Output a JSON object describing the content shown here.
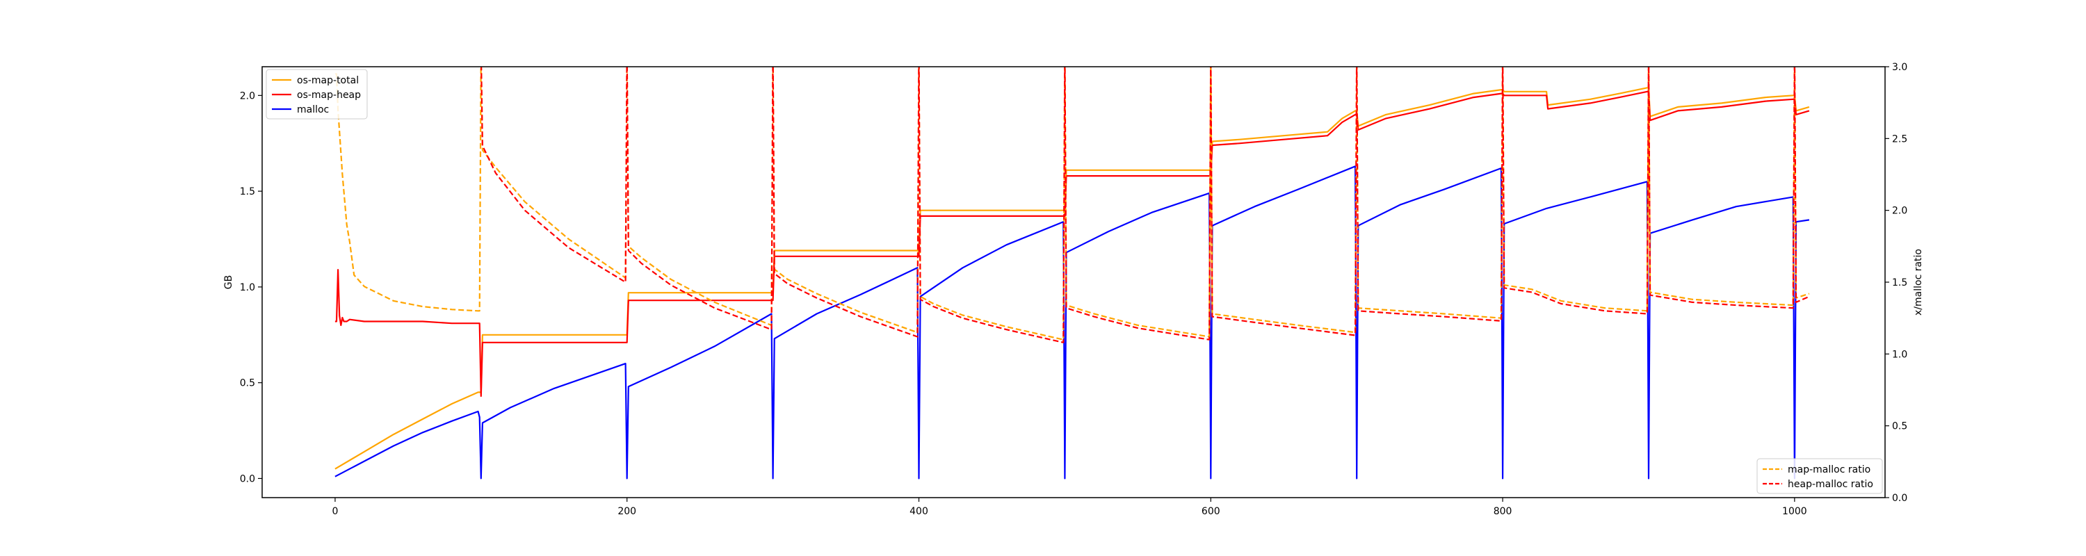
{
  "chart_data": {
    "type": "line",
    "title": "",
    "xlabel": "",
    "ylabel_left": "GB",
    "ylabel_right": "x/malloc ratio",
    "xlim": [
      -50,
      1062
    ],
    "ylim_left": [
      -0.1,
      2.15
    ],
    "ylim_right": [
      0,
      3.0
    ],
    "xticks": [
      0,
      200,
      400,
      600,
      800,
      1000
    ],
    "xtick_labels": [
      "0",
      "200",
      "400",
      "600",
      "800",
      "1000"
    ],
    "yticks_left": [
      0.0,
      0.5,
      1.0,
      1.5,
      2.0
    ],
    "ytick_labels_left": [
      "0.0",
      "0.5",
      "1.0",
      "1.5",
      "2.0"
    ],
    "yticks_right": [
      0.0,
      0.5,
      1.0,
      1.5,
      2.0,
      2.5,
      3.0
    ],
    "ytick_labels_right": [
      "0.0",
      "0.5",
      "1.0",
      "1.5",
      "2.0",
      "2.5",
      "3.0"
    ],
    "grid": false,
    "legend_left": {
      "placement": "top-left",
      "entries": [
        "os-map-total",
        "os-map-heap",
        "malloc"
      ]
    },
    "legend_right": {
      "placement": "bottom-right",
      "entries": [
        "map-malloc ratio",
        "heap-malloc ratio"
      ]
    },
    "colors": {
      "os_map_total": "#ffa500",
      "os_map_heap": "#ff0000",
      "malloc": "#0000ff"
    },
    "series": [
      {
        "name": "os-map-total",
        "axis": "left",
        "style": "solid",
        "color": "#ffa500",
        "x": [
          0,
          20,
          40,
          60,
          80,
          98,
          100,
          101,
          199,
          200,
          201,
          299,
          300,
          301,
          399,
          400,
          401,
          499,
          500,
          501,
          599,
          600,
          601,
          620,
          650,
          680,
          690,
          699,
          700,
          701,
          720,
          750,
          780,
          799,
          800,
          801,
          830,
          831,
          860,
          880,
          899,
          900,
          901,
          920,
          950,
          980,
          999,
          1000,
          1001,
          1010
        ],
        "y": [
          0.05,
          0.14,
          0.23,
          0.31,
          0.39,
          0.45,
          0.45,
          0.75,
          0.75,
          0.75,
          0.97,
          0.97,
          0.97,
          1.19,
          1.19,
          1.19,
          1.4,
          1.4,
          1.4,
          1.61,
          1.61,
          1.61,
          1.76,
          1.77,
          1.79,
          1.81,
          1.88,
          1.92,
          1.92,
          1.84,
          1.9,
          1.95,
          2.01,
          2.03,
          2.03,
          2.02,
          2.02,
          1.95,
          1.98,
          2.01,
          2.04,
          2.04,
          1.89,
          1.94,
          1.96,
          1.99,
          2.0,
          2.0,
          1.92,
          1.94
        ]
      },
      {
        "name": "os-map-heap",
        "axis": "left",
        "style": "solid",
        "color": "#ff0000",
        "x": [
          0,
          1,
          2,
          3,
          4,
          5,
          6,
          8,
          10,
          20,
          40,
          60,
          80,
          98,
          99,
          100,
          101,
          199,
          200,
          201,
          299,
          300,
          301,
          399,
          400,
          401,
          499,
          500,
          501,
          599,
          600,
          601,
          620,
          650,
          680,
          690,
          699,
          700,
          701,
          720,
          750,
          780,
          799,
          800,
          801,
          830,
          831,
          860,
          880,
          899,
          900,
          901,
          920,
          950,
          980,
          999,
          1000,
          1001,
          1010
        ],
        "y": [
          0.82,
          0.82,
          1.09,
          0.85,
          0.8,
          0.84,
          0.82,
          0.82,
          0.83,
          0.82,
          0.82,
          0.82,
          0.81,
          0.81,
          0.81,
          0.43,
          0.71,
          0.71,
          0.71,
          0.93,
          0.93,
          0.93,
          1.16,
          1.16,
          1.16,
          1.37,
          1.37,
          1.37,
          1.58,
          1.58,
          1.58,
          1.74,
          1.75,
          1.77,
          1.79,
          1.86,
          1.9,
          1.9,
          1.82,
          1.88,
          1.93,
          1.99,
          2.01,
          2.01,
          2.0,
          2.0,
          1.93,
          1.96,
          1.99,
          2.02,
          2.02,
          1.87,
          1.92,
          1.94,
          1.97,
          1.98,
          1.98,
          1.9,
          1.92
        ]
      },
      {
        "name": "malloc",
        "axis": "left",
        "style": "solid",
        "color": "#0000ff",
        "x": [
          0,
          20,
          40,
          60,
          80,
          98,
          99,
          100,
          101,
          120,
          150,
          199,
          200,
          201,
          230,
          260,
          299,
          300,
          301,
          330,
          360,
          399,
          400,
          401,
          430,
          460,
          499,
          500,
          501,
          530,
          560,
          599,
          600,
          601,
          630,
          660,
          699,
          700,
          701,
          730,
          760,
          799,
          800,
          801,
          830,
          860,
          899,
          900,
          901,
          930,
          960,
          999,
          1000,
          1001,
          1010
        ],
        "y": [
          0.01,
          0.09,
          0.17,
          0.24,
          0.3,
          0.35,
          0.32,
          0.0,
          0.29,
          0.37,
          0.47,
          0.6,
          0.0,
          0.48,
          0.58,
          0.69,
          0.86,
          0.0,
          0.73,
          0.86,
          0.96,
          1.1,
          0.0,
          0.95,
          1.1,
          1.22,
          1.34,
          0.0,
          1.18,
          1.29,
          1.39,
          1.49,
          0.0,
          1.32,
          1.42,
          1.51,
          1.63,
          0.0,
          1.32,
          1.43,
          1.51,
          1.62,
          0.0,
          1.33,
          1.41,
          1.47,
          1.55,
          0.0,
          1.28,
          1.35,
          1.42,
          1.47,
          0.0,
          1.34,
          1.35
        ]
      },
      {
        "name": "map-malloc ratio",
        "axis": "right",
        "style": "dashed",
        "color": "#ffa500",
        "x": [
          0,
          1,
          2,
          5,
          8,
          10,
          13,
          20,
          40,
          60,
          80,
          98,
          99,
          100,
          101,
          110,
          130,
          160,
          199,
          200,
          201,
          210,
          230,
          260,
          299,
          300,
          301,
          310,
          330,
          360,
          399,
          400,
          401,
          410,
          430,
          460,
          499,
          500,
          501,
          520,
          550,
          599,
          600,
          601,
          630,
          660,
          699,
          700,
          701,
          730,
          760,
          799,
          800,
          801,
          820,
          840,
          870,
          899,
          900,
          901,
          930,
          960,
          999,
          1000,
          1001,
          1010
        ],
        "y": [
          2.95,
          2.95,
          2.7,
          2.25,
          1.9,
          1.78,
          1.55,
          1.47,
          1.37,
          1.33,
          1.31,
          1.3,
          1.3,
          3.1,
          2.42,
          2.3,
          2.06,
          1.8,
          1.53,
          3.1,
          1.75,
          1.67,
          1.52,
          1.36,
          1.2,
          3.1,
          1.59,
          1.52,
          1.42,
          1.29,
          1.15,
          3.1,
          1.4,
          1.35,
          1.27,
          1.19,
          1.1,
          3.1,
          1.34,
          1.28,
          1.2,
          1.12,
          3.1,
          1.28,
          1.24,
          1.2,
          1.15,
          3.1,
          1.32,
          1.3,
          1.28,
          1.25,
          3.1,
          1.48,
          1.45,
          1.37,
          1.32,
          1.3,
          3.1,
          1.43,
          1.38,
          1.36,
          1.34,
          3.1,
          1.39,
          1.42
        ]
      },
      {
        "name": "heap-malloc ratio",
        "axis": "right",
        "style": "dashed",
        "color": "#ff0000",
        "x": [
          0,
          98,
          99,
          100,
          101,
          110,
          130,
          160,
          199,
          200,
          201,
          210,
          230,
          260,
          299,
          300,
          301,
          310,
          330,
          360,
          399,
          400,
          401,
          410,
          430,
          460,
          499,
          500,
          501,
          520,
          550,
          599,
          600,
          601,
          630,
          660,
          699,
          700,
          701,
          730,
          760,
          799,
          800,
          801,
          820,
          840,
          870,
          899,
          900,
          901,
          930,
          960,
          999,
          1000,
          1001,
          1010
        ],
        "y": [
          3.1,
          3.1,
          3.1,
          3.1,
          2.45,
          2.26,
          2.0,
          1.74,
          1.5,
          3.1,
          1.72,
          1.63,
          1.48,
          1.32,
          1.17,
          3.1,
          1.56,
          1.49,
          1.39,
          1.26,
          1.12,
          3.1,
          1.38,
          1.33,
          1.25,
          1.17,
          1.08,
          3.1,
          1.32,
          1.26,
          1.18,
          1.1,
          3.1,
          1.26,
          1.22,
          1.18,
          1.13,
          3.1,
          1.3,
          1.28,
          1.26,
          1.23,
          3.1,
          1.46,
          1.43,
          1.35,
          1.3,
          1.28,
          3.1,
          1.41,
          1.36,
          1.34,
          1.32,
          3.1,
          1.36,
          1.4
        ]
      }
    ]
  }
}
